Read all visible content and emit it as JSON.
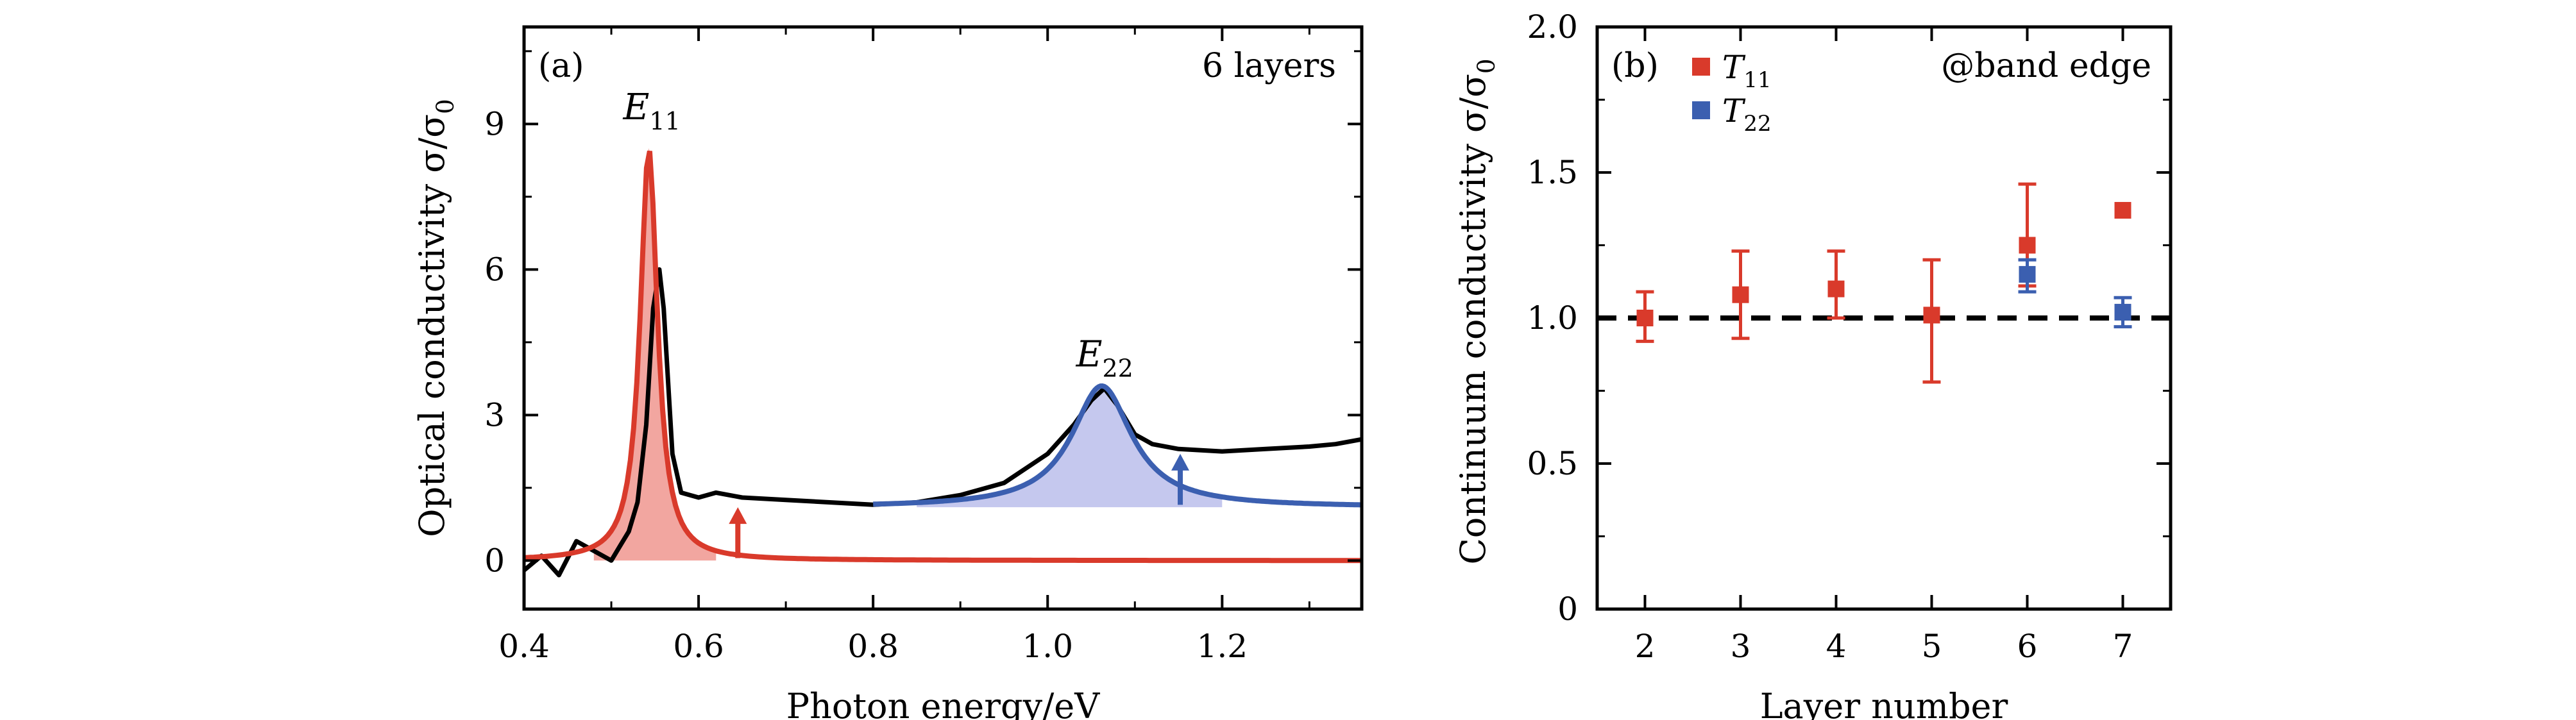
{
  "chart_data": [
    {
      "panel": "(a)",
      "type": "line",
      "annotation": "6 layers",
      "xlabel": "Photon energy/eV",
      "ylabel": "Optical conductivity σ/σ",
      "ylabel_sub": "0",
      "xlim": [
        0.4,
        1.36
      ],
      "ylim": [
        -1.0,
        11.0
      ],
      "xticks": [
        0.4,
        0.6,
        0.8,
        1.0,
        1.2
      ],
      "xtick_labels": [
        "0.4",
        "0.6",
        "0.8",
        "1.0",
        "1.2"
      ],
      "yticks": [
        0,
        3,
        6,
        9
      ],
      "ytick_labels": [
        "0",
        "3",
        "6",
        "9"
      ],
      "peak_labels": [
        {
          "base": "E",
          "sub": "11",
          "x": 0.543,
          "y": 9.1
        },
        {
          "base": "E",
          "sub": "22",
          "x": 1.062,
          "y": 4.0
        }
      ],
      "series": [
        {
          "role": "measured",
          "color": "#000000",
          "x": [
            0.4,
            0.42,
            0.44,
            0.46,
            0.48,
            0.5,
            0.51,
            0.52,
            0.53,
            0.54,
            0.548,
            0.555,
            0.56,
            0.57,
            0.58,
            0.6,
            0.62,
            0.65,
            0.7,
            0.75,
            0.8,
            0.85,
            0.9,
            0.95,
            1.0,
            1.03,
            1.05,
            1.065,
            1.08,
            1.1,
            1.12,
            1.15,
            1.2,
            1.25,
            1.3,
            1.33,
            1.36
          ],
          "y": [
            -0.2,
            0.1,
            -0.3,
            0.4,
            0.2,
            0.0,
            0.3,
            0.6,
            1.2,
            2.8,
            5.2,
            6.0,
            5.2,
            2.2,
            1.4,
            1.3,
            1.4,
            1.3,
            1.25,
            1.2,
            1.15,
            1.2,
            1.35,
            1.6,
            2.2,
            2.8,
            3.3,
            3.55,
            3.2,
            2.6,
            2.4,
            2.3,
            2.25,
            2.3,
            2.35,
            2.4,
            2.5
          ]
        },
        {
          "role": "E11 fit",
          "color": "#d93a2b",
          "fill": "#f2a6a0",
          "x0": 0.543,
          "gamma": 0.012,
          "amp": 8.5,
          "baseline": 0.0
        },
        {
          "role": "E22 fit",
          "color": "#3b5fb0",
          "fill": "#c5c8ee",
          "x0": 1.062,
          "gamma": 0.042,
          "amp": 2.5,
          "baseline": 1.1,
          "x_start": 0.8
        }
      ],
      "arrows": [
        {
          "color": "#d93a2b",
          "x": 0.645,
          "y_from": 0.05,
          "y_to": 1.1
        },
        {
          "color": "#3b5fb0",
          "x": 1.152,
          "y_from": 1.15,
          "y_to": 2.2
        }
      ]
    },
    {
      "panel": "(b)",
      "type": "scatter",
      "annotation": "@band edge",
      "xlabel": "Layer number",
      "ylabel": "Continuum conductivity σ/σ",
      "ylabel_sub": "0",
      "xlim": [
        1.5,
        7.5
      ],
      "ylim": [
        0,
        2.0
      ],
      "xticks": [
        2,
        3,
        4,
        5,
        6,
        7
      ],
      "xtick_labels": [
        "2",
        "3",
        "4",
        "5",
        "6",
        "7"
      ],
      "yticks": [
        0,
        0.5,
        1.0,
        1.5,
        2.0
      ],
      "ytick_labels": [
        "0",
        "0.5",
        "1.0",
        "1.5",
        "2.0"
      ],
      "reference_line": 1.0,
      "series": [
        {
          "name": "T",
          "name_sub": "11",
          "color": "#d93a2b",
          "x": [
            2,
            3,
            4,
            5,
            6,
            7
          ],
          "y": [
            1.0,
            1.08,
            1.1,
            1.01,
            1.25,
            1.37
          ],
          "err_low": [
            0.08,
            0.15,
            0.1,
            0.23,
            0.14,
            0.0
          ],
          "err_high": [
            0.09,
            0.15,
            0.13,
            0.19,
            0.21,
            0.0
          ]
        },
        {
          "name": "T",
          "name_sub": "22",
          "color": "#3b5fb0",
          "x": [
            6,
            7
          ],
          "y": [
            1.15,
            1.02
          ],
          "err_low": [
            0.06,
            0.05
          ],
          "err_high": [
            0.05,
            0.05
          ]
        }
      ]
    }
  ]
}
